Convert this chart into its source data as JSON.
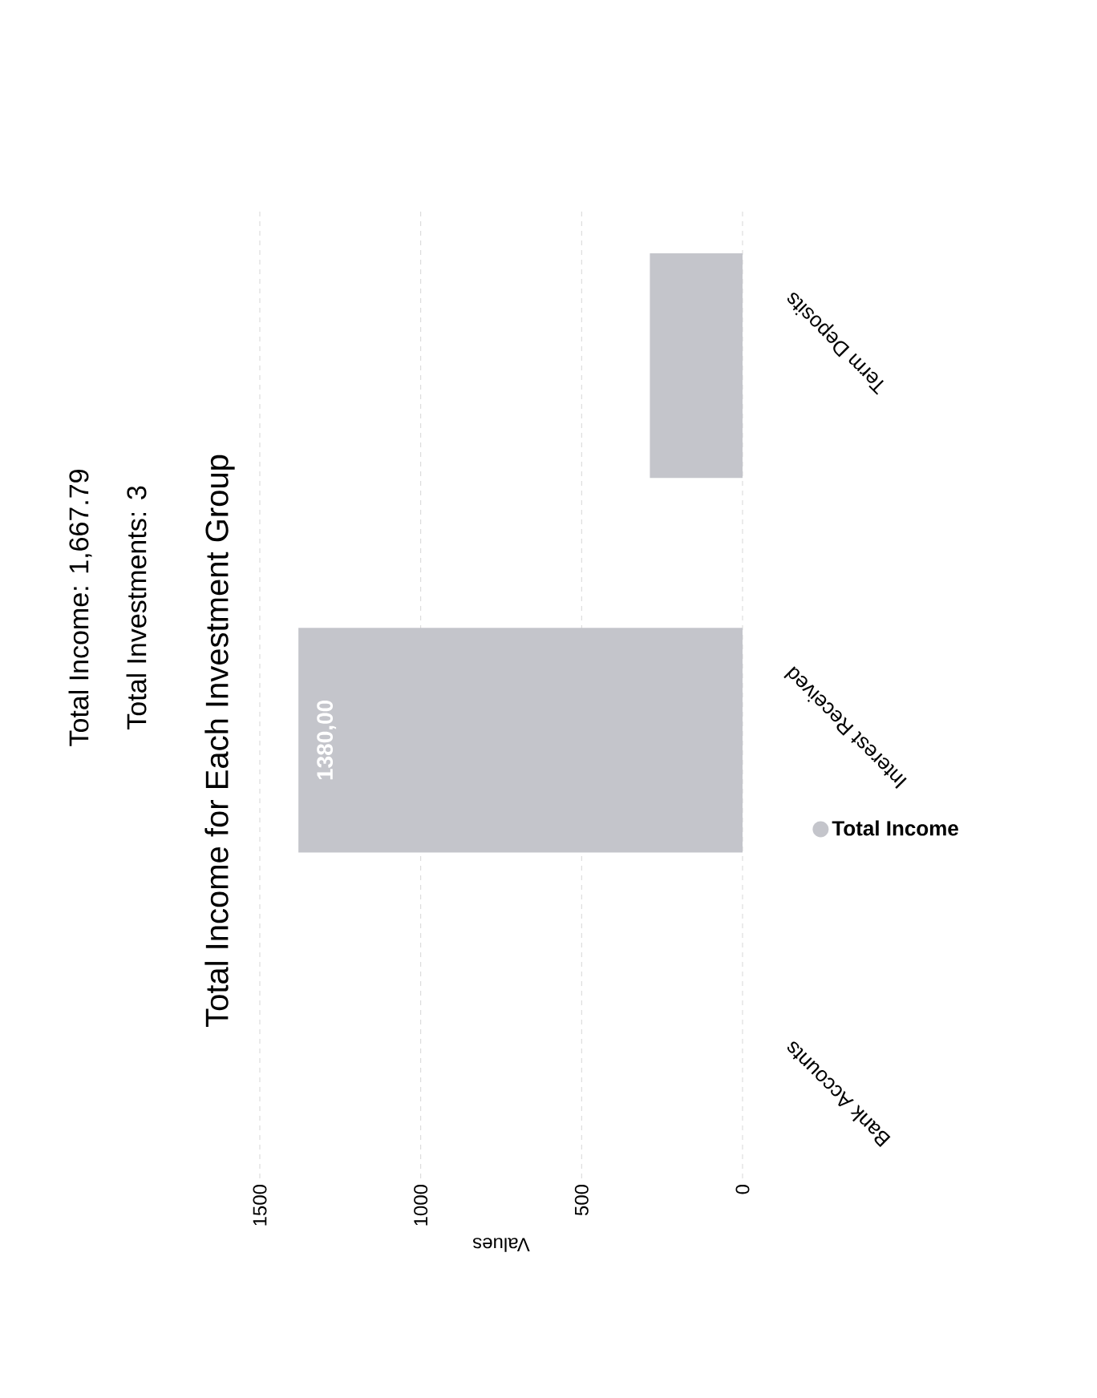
{
  "chart_data": {
    "type": "bar",
    "orientation": "horizontal",
    "title": "Total Income for Each Investment Group",
    "annotations": [
      "Total Income: 1,667.79",
      "Total Investments: 3"
    ],
    "xlabel": "Values",
    "categories": [
      "Term Deposits",
      "Interest Received",
      "Bank Accounts"
    ],
    "series": [
      {
        "name": "Total Income",
        "color": "#c4c5cb",
        "values": [
          288,
          1380,
          0
        ],
        "value_labels": [
          null,
          "1380,00",
          null
        ]
      }
    ],
    "xlim": [
      1500,
      0
    ],
    "xticks": [
      1500,
      1000,
      500,
      0
    ],
    "grid": "x",
    "legend": "right"
  }
}
